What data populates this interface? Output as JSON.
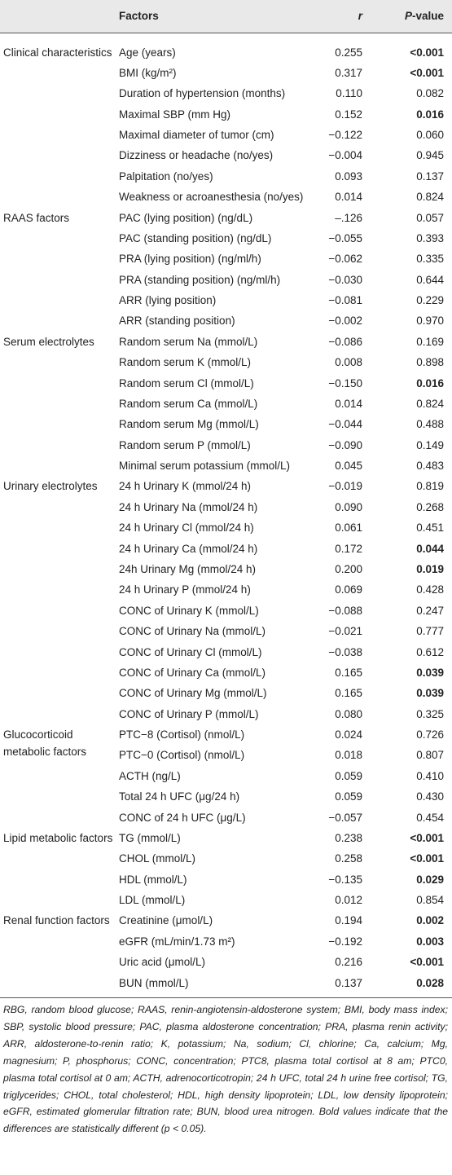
{
  "header": {
    "factors": "Factors",
    "r": "r",
    "p_value": "P-value"
  },
  "groups": [
    {
      "label": "Clinical characteristics",
      "rows": [
        {
          "factor": "Age (years)",
          "r": "0.255",
          "p": "<0.001",
          "bold": true
        },
        {
          "factor": "BMI (kg/m²)",
          "r": "0.317",
          "p": "<0.001",
          "bold": true
        },
        {
          "factor": "Duration of hypertension (months)",
          "r": "0.110",
          "p": "0.082",
          "bold": false
        },
        {
          "factor": "Maximal SBP (mm Hg)",
          "r": "0.152",
          "p": "0.016",
          "bold": true
        },
        {
          "factor": "Maximal diameter of tumor (cm)",
          "r": "−0.122",
          "p": "0.060",
          "bold": false
        },
        {
          "factor": "Dizziness or headache (no/yes)",
          "r": "−0.004",
          "p": "0.945",
          "bold": false
        },
        {
          "factor": "Palpitation (no/yes)",
          "r": "0.093",
          "p": "0.137",
          "bold": false
        },
        {
          "factor": "Weakness or acroanesthesia (no/yes)",
          "r": "0.014",
          "p": "0.824",
          "bold": false
        }
      ]
    },
    {
      "label": "RAAS factors",
      "rows": [
        {
          "factor": "PAC (lying position) (ng/dL)",
          "r": "–.126",
          "p": "0.057",
          "bold": false
        },
        {
          "factor": "PAC (standing position) (ng/dL)",
          "r": "−0.055",
          "p": "0.393",
          "bold": false
        },
        {
          "factor": "PRA (lying position) (ng/ml/h)",
          "r": "−0.062",
          "p": "0.335",
          "bold": false
        },
        {
          "factor": "PRA (standing position) (ng/ml/h)",
          "r": "−0.030",
          "p": "0.644",
          "bold": false
        },
        {
          "factor": "ARR (lying position)",
          "r": "−0.081",
          "p": "0.229",
          "bold": false
        },
        {
          "factor": "ARR (standing position)",
          "r": "−0.002",
          "p": "0.970",
          "bold": false
        }
      ]
    },
    {
      "label": "Serum electrolytes",
      "rows": [
        {
          "factor": "Random serum Na (mmol/L)",
          "r": "−0.086",
          "p": "0.169",
          "bold": false
        },
        {
          "factor": "Random serum K (mmol/L)",
          "r": "0.008",
          "p": "0.898",
          "bold": false
        },
        {
          "factor": "Random serum Cl (mmol/L)",
          "r": "−0.150",
          "p": "0.016",
          "bold": true
        },
        {
          "factor": "Random serum Ca (mmol/L)",
          "r": "0.014",
          "p": "0.824",
          "bold": false
        },
        {
          "factor": "Random serum Mg (mmol/L)",
          "r": "−0.044",
          "p": "0.488",
          "bold": false
        },
        {
          "factor": "Random serum P (mmol/L)",
          "r": "−0.090",
          "p": "0.149",
          "bold": false
        },
        {
          "factor": "Minimal serum potassium (mmol/L)",
          "r": "0.045",
          "p": "0.483",
          "bold": false
        }
      ]
    },
    {
      "label": "Urinary electrolytes",
      "rows": [
        {
          "factor": "24 h Urinary K (mmol/24 h)",
          "r": "−0.019",
          "p": "0.819",
          "bold": false
        },
        {
          "factor": "24 h Urinary Na (mmol/24 h)",
          "r": "0.090",
          "p": "0.268",
          "bold": false
        },
        {
          "factor": "24 h Urinary Cl (mmol/24 h)",
          "r": "0.061",
          "p": "0.451",
          "bold": false
        },
        {
          "factor": "24 h Urinary Ca (mmol/24 h)",
          "r": "0.172",
          "p": "0.044",
          "bold": true
        },
        {
          "factor": "24h Urinary Mg (mmol/24 h)",
          "r": "0.200",
          "p": "0.019",
          "bold": true
        },
        {
          "factor": "24 h Urinary P (mmol/24 h)",
          "r": "0.069",
          "p": "0.428",
          "bold": false
        },
        {
          "factor": "CONC of Urinary K (mmol/L)",
          "r": "−0.088",
          "p": "0.247",
          "bold": false
        },
        {
          "factor": "CONC of Urinary Na (mmol/L)",
          "r": "−0.021",
          "p": "0.777",
          "bold": false
        },
        {
          "factor": "CONC of Urinary Cl (mmol/L)",
          "r": "−0.038",
          "p": "0.612",
          "bold": false
        },
        {
          "factor": "CONC of Urinary Ca (mmol/L)",
          "r": "0.165",
          "p": "0.039",
          "bold": true
        },
        {
          "factor": "CONC of Urinary Mg (mmol/L)",
          "r": "0.165",
          "p": "0.039",
          "bold": true
        },
        {
          "factor": "CONC of Urinary P (mmol/L)",
          "r": "0.080",
          "p": "0.325",
          "bold": false
        }
      ]
    },
    {
      "label": "Glucocorticoid metabolic factors",
      "rows": [
        {
          "factor": "PTC−8 (Cortisol) (nmol/L)",
          "r": "0.024",
          "p": "0.726",
          "bold": false
        },
        {
          "factor": "PTC−0 (Cortisol) (nmol/L)",
          "r": "0.018",
          "p": "0.807",
          "bold": false
        },
        {
          "factor": "ACTH (ng/L)",
          "r": "0.059",
          "p": "0.410",
          "bold": false
        },
        {
          "factor": "Total 24 h UFC (μg/24 h)",
          "r": "0.059",
          "p": "0.430",
          "bold": false
        },
        {
          "factor": "CONC of 24 h UFC (μg/L)",
          "r": "−0.057",
          "p": "0.454",
          "bold": false
        }
      ]
    },
    {
      "label": "Lipid metabolic factors",
      "rows": [
        {
          "factor": "TG (mmol/L)",
          "r": "0.238",
          "p": "<0.001",
          "bold": true
        },
        {
          "factor": "CHOL (mmol/L)",
          "r": "0.258",
          "p": "<0.001",
          "bold": true
        },
        {
          "factor": "HDL (mmol/L)",
          "r": "−0.135",
          "p": "0.029",
          "bold": true
        },
        {
          "factor": "LDL (mmol/L)",
          "r": "0.012",
          "p": "0.854",
          "bold": false
        }
      ]
    },
    {
      "label": "Renal function factors",
      "rows": [
        {
          "factor": "Creatinine (μmol/L)",
          "r": "0.194",
          "p": "0.002",
          "bold": true
        },
        {
          "factor": "eGFR (mL/min/1.73 m²)",
          "r": "−0.192",
          "p": "0.003",
          "bold": true
        },
        {
          "factor": "Uric acid (μmol/L)",
          "r": "0.216",
          "p": "<0.001",
          "bold": true
        },
        {
          "factor": "BUN (mmol/L)",
          "r": "0.137",
          "p": "0.028",
          "bold": true
        }
      ]
    }
  ],
  "footnote": "RBG, random blood glucose; RAAS, renin-angiotensin-aldosterone system; BMI, body mass index; SBP, systolic blood pressure; PAC, plasma aldosterone concentration; PRA, plasma renin activity; ARR, aldosterone-to-renin ratio; K, potassium; Na, sodium; Cl, chlorine; Ca, calcium; Mg, magnesium; P, phosphorus; CONC, concentration; PTC8, plasma total cortisol at 8 am; PTC0, plasma total cortisol at 0 am; ACTH, adrenocorticotropin; 24 h UFC, total 24 h urine free cortisol; TG, triglycerides; CHOL, total cholesterol; HDL, high density lipoprotein; LDL, low density lipoprotein; eGFR, estimated glomerular filtration rate; BUN, blood urea nitrogen. Bold values indicate that the differences are statistically different (p < 0.05)."
}
